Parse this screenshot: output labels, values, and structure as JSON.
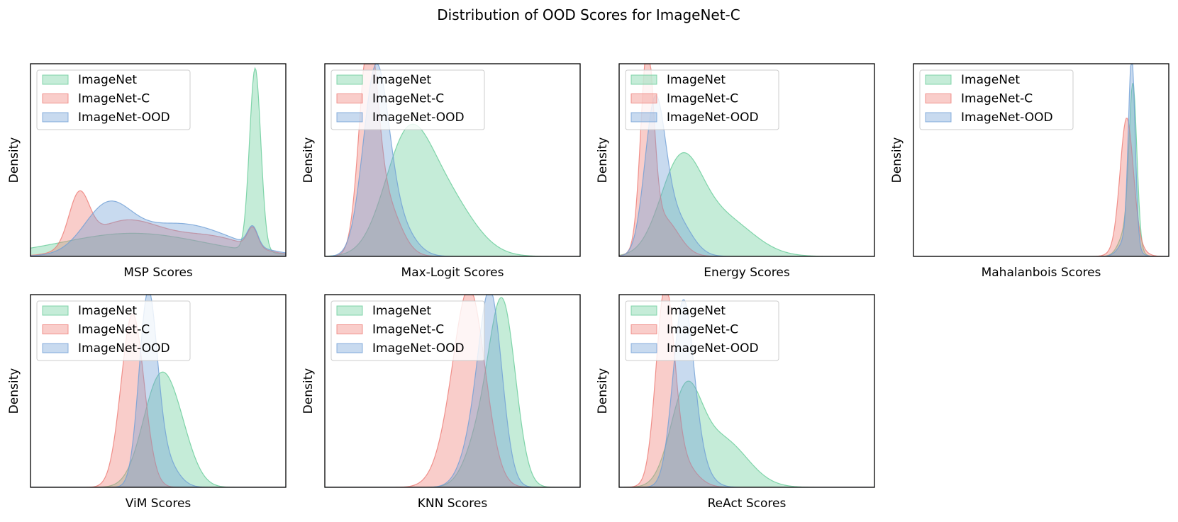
{
  "figure": {
    "title": "Distribution of OOD Scores for ImageNet-C"
  },
  "legend_entries": [
    "ImageNet",
    "ImageNet-C",
    "ImageNet-OOD"
  ],
  "colors": {
    "ImageNet": "#66cc99",
    "ImageNet-C": "#ee7b74",
    "ImageNet-OOD": "#6f9fd6",
    "frame": "#000000"
  },
  "chart_data": [
    {
      "type": "area",
      "xlabel": "MSP Scores",
      "ylabel": "Density",
      "legend": "upper-left",
      "ticks_shown": false,
      "series": [
        {
          "name": "ImageNet",
          "peaks": [
            {
              "x": 0.4,
              "h": 0.12,
              "w": 0.28
            },
            {
              "x": 0.88,
              "h": 0.95,
              "w": 0.022
            }
          ]
        },
        {
          "name": "ImageNet-C",
          "peaks": [
            {
              "x": 0.19,
              "h": 0.26,
              "w": 0.04
            },
            {
              "x": 0.37,
              "h": 0.18,
              "w": 0.14
            },
            {
              "x": 0.7,
              "h": 0.1,
              "w": 0.15
            },
            {
              "x": 0.87,
              "h": 0.1,
              "w": 0.02
            }
          ]
        },
        {
          "name": "ImageNet-OOD",
          "peaks": [
            {
              "x": 0.3,
              "h": 0.22,
              "w": 0.09
            },
            {
              "x": 0.58,
              "h": 0.17,
              "w": 0.2
            },
            {
              "x": 0.87,
              "h": 0.1,
              "w": 0.02
            }
          ]
        }
      ]
    },
    {
      "type": "area",
      "xlabel": "Max-Logit Scores",
      "ylabel": "Density",
      "legend": "upper-left",
      "ticks_shown": false,
      "series": [
        {
          "name": "ImageNet",
          "peaks": [
            {
              "x": 0.32,
              "h": 0.55,
              "w": 0.09
            },
            {
              "x": 0.47,
              "h": 0.3,
              "w": 0.11
            }
          ]
        },
        {
          "name": "ImageNet-C",
          "peaks": [
            {
              "x": 0.17,
              "h": 0.98,
              "w": 0.035
            },
            {
              "x": 0.23,
              "h": 0.3,
              "w": 0.06
            }
          ]
        },
        {
          "name": "ImageNet-OOD",
          "peaks": [
            {
              "x": 0.2,
              "h": 0.95,
              "w": 0.05
            },
            {
              "x": 0.29,
              "h": 0.15,
              "w": 0.06
            }
          ]
        }
      ]
    },
    {
      "type": "area",
      "xlabel": "Energy Scores",
      "ylabel": "Density",
      "legend": "upper-left",
      "ticks_shown": false,
      "series": [
        {
          "name": "ImageNet",
          "peaks": [
            {
              "x": 0.24,
              "h": 0.45,
              "w": 0.08
            },
            {
              "x": 0.4,
              "h": 0.2,
              "w": 0.12
            }
          ]
        },
        {
          "name": "ImageNet-C",
          "peaks": [
            {
              "x": 0.11,
              "h": 0.98,
              "w": 0.025
            },
            {
              "x": 0.17,
              "h": 0.2,
              "w": 0.06
            }
          ]
        },
        {
          "name": "ImageNet-OOD",
          "peaks": [
            {
              "x": 0.14,
              "h": 0.75,
              "w": 0.04
            },
            {
              "x": 0.22,
              "h": 0.2,
              "w": 0.06
            }
          ]
        }
      ]
    },
    {
      "type": "area",
      "xlabel": "Mahalanbois Scores",
      "ylabel": "Density",
      "legend": "upper-left",
      "ticks_shown": false,
      "series": [
        {
          "name": "ImageNet",
          "peaks": [
            {
              "x": 0.86,
              "h": 0.78,
              "w": 0.015
            },
            {
              "x": 0.84,
              "h": 0.15,
              "w": 0.03
            }
          ]
        },
        {
          "name": "ImageNet-C",
          "peaks": [
            {
              "x": 0.835,
              "h": 0.6,
              "w": 0.025
            },
            {
              "x": 0.84,
              "h": 0.12,
              "w": 0.04
            }
          ]
        },
        {
          "name": "ImageNet-OOD",
          "peaks": [
            {
              "x": 0.855,
              "h": 0.96,
              "w": 0.013
            },
            {
              "x": 0.84,
              "h": 0.1,
              "w": 0.03
            }
          ]
        }
      ]
    },
    {
      "type": "area",
      "xlabel": "ViM Scores",
      "ylabel": "Density",
      "legend": "upper-left",
      "ticks_shown": false,
      "series": [
        {
          "name": "ImageNet",
          "peaks": [
            {
              "x": 0.5,
              "h": 0.5,
              "w": 0.065
            },
            {
              "x": 0.58,
              "h": 0.2,
              "w": 0.06
            }
          ]
        },
        {
          "name": "ImageNet-C",
          "peaks": [
            {
              "x": 0.4,
              "h": 0.9,
              "w": 0.045
            }
          ]
        },
        {
          "name": "ImageNet-OOD",
          "peaks": [
            {
              "x": 0.46,
              "h": 0.95,
              "w": 0.035
            },
            {
              "x": 0.52,
              "h": 0.15,
              "w": 0.05
            }
          ]
        }
      ]
    },
    {
      "type": "area",
      "xlabel": "KNN Scores",
      "ylabel": "Density",
      "legend": "upper-left",
      "ticks_shown": false,
      "series": [
        {
          "name": "ImageNet",
          "peaks": [
            {
              "x": 0.7,
              "h": 0.85,
              "w": 0.05
            },
            {
              "x": 0.62,
              "h": 0.3,
              "w": 0.06
            }
          ]
        },
        {
          "name": "ImageNet-C",
          "peaks": [
            {
              "x": 0.57,
              "h": 0.97,
              "w": 0.06
            },
            {
              "x": 0.49,
              "h": 0.15,
              "w": 0.06
            }
          ]
        },
        {
          "name": "ImageNet-OOD",
          "peaks": [
            {
              "x": 0.65,
              "h": 0.95,
              "w": 0.045
            },
            {
              "x": 0.58,
              "h": 0.2,
              "w": 0.05
            }
          ]
        }
      ]
    },
    {
      "type": "area",
      "xlabel": "ReAct Scores",
      "ylabel": "Density",
      "legend": "upper-left",
      "ticks_shown": false,
      "series": [
        {
          "name": "ImageNet",
          "peaks": [
            {
              "x": 0.26,
              "h": 0.45,
              "w": 0.06
            },
            {
              "x": 0.4,
              "h": 0.25,
              "w": 0.1
            }
          ]
        },
        {
          "name": "ImageNet-C",
          "peaks": [
            {
              "x": 0.18,
              "h": 0.95,
              "w": 0.035
            },
            {
              "x": 0.23,
              "h": 0.15,
              "w": 0.06
            }
          ]
        },
        {
          "name": "ImageNet-OOD",
          "peaks": [
            {
              "x": 0.25,
              "h": 0.9,
              "w": 0.04
            },
            {
              "x": 0.3,
              "h": 0.12,
              "w": 0.05
            }
          ]
        }
      ]
    }
  ]
}
